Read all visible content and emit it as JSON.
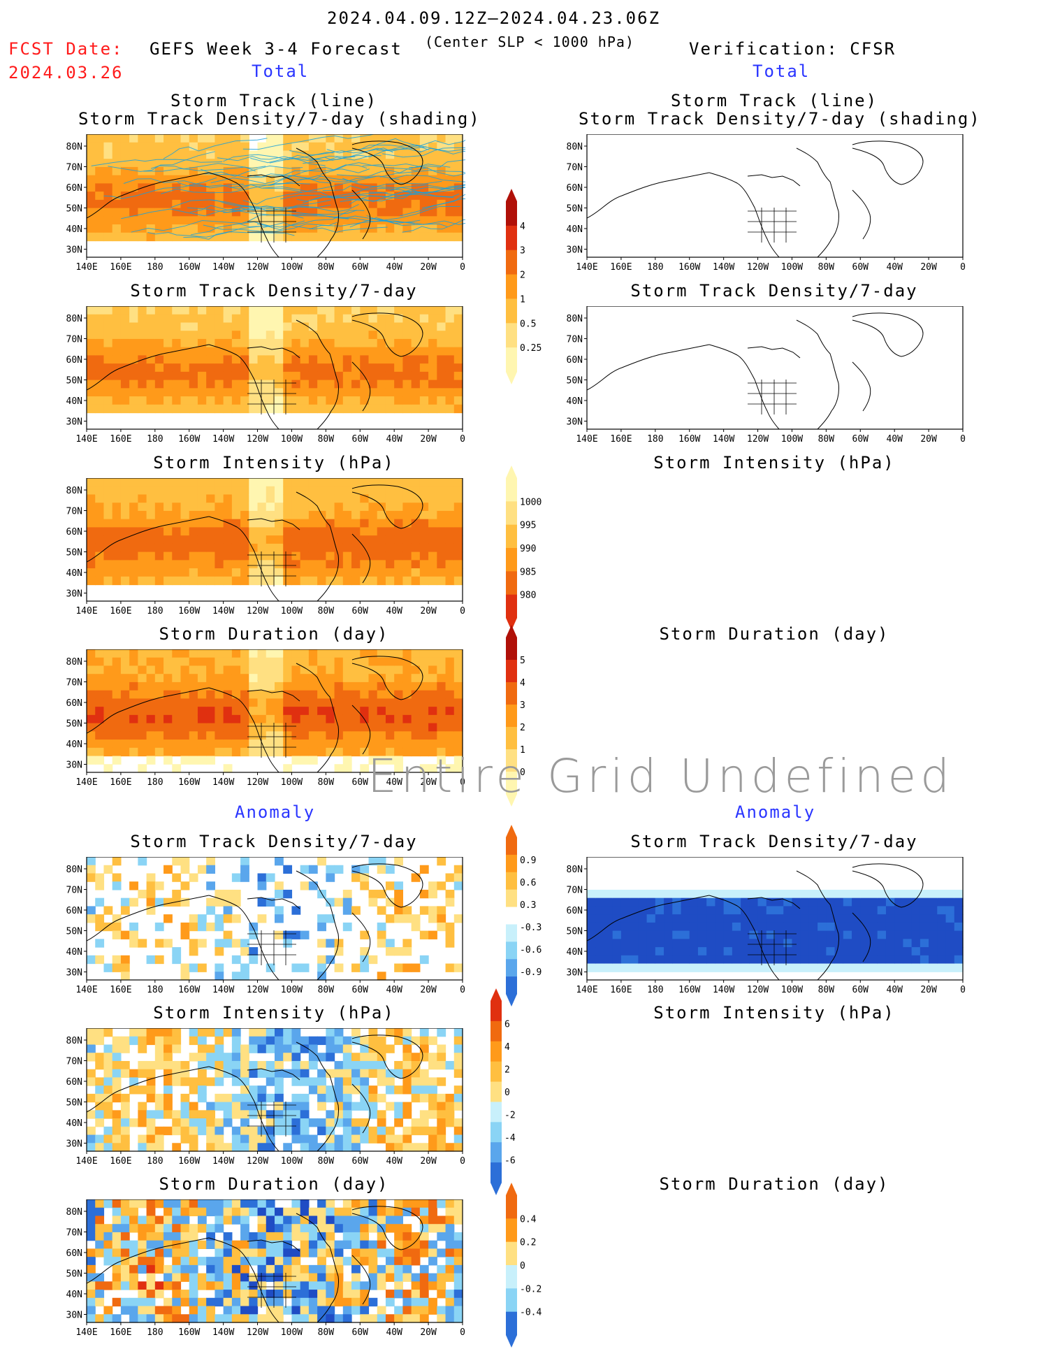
{
  "header": {
    "date_range": "2024.04.09.12Z–2024.04.23.06Z",
    "threshold": "(Center SLP < 1000 hPa)",
    "fcst_label": "FCST Date:",
    "fcst_date": "2024.03.26",
    "forecast_title": "GEFS Week 3-4 Forecast",
    "verification_title": "Verification: CFSR"
  },
  "sections": {
    "total_left": "Total",
    "total_right": "Total",
    "anomaly_left": "Anomaly",
    "anomaly_right": "Anomaly"
  },
  "panels": {
    "track_line": "Storm Track (line)",
    "track_shading": "Storm Track Density/7-day (shading)",
    "density": "Storm Track Density/7-day",
    "intensity": "Storm Intensity (hPa)",
    "duration": "Storm Duration (day)"
  },
  "axes": {
    "lat_labels": [
      "80N",
      "70N",
      "60N",
      "50N",
      "40N",
      "30N"
    ],
    "lon_labels": [
      "140E",
      "160E",
      "180",
      "160W",
      "140W",
      "120W",
      "100W",
      "80W",
      "60W",
      "40W",
      "20W",
      "0"
    ]
  },
  "colorbars": {
    "density_total": [
      "4",
      "3",
      "2",
      "1",
      "0.5",
      "0.25"
    ],
    "intensity_total": [
      "1000",
      "995",
      "990",
      "985",
      "980"
    ],
    "duration_total": [
      "5",
      "4",
      "3",
      "2",
      "1",
      "0"
    ],
    "density_anom": [
      "0.9",
      "0.6",
      "0.3",
      "-0.3",
      "-0.6",
      "-0.9"
    ],
    "intensity_anom": [
      "6",
      "4",
      "2",
      "0",
      "-2",
      "-4",
      "-6"
    ],
    "duration_anom": [
      "0.4",
      "0.2",
      "0",
      "-0.2",
      "-0.4"
    ]
  },
  "watermark": "Entire Grid Undefined",
  "colors": {
    "fcst_red": "#ff1a1a",
    "section_blue": "#2a35ff",
    "track_lines": "#1aa0d8",
    "warm_scale": [
      "#fff6b0",
      "#ffe082",
      "#ffbf40",
      "#ff9a1a",
      "#f06a10",
      "#e03010",
      "#b01008"
    ],
    "cool_scale": [
      "#c8f0fb",
      "#8ad4f5",
      "#5aa6ec",
      "#2c6fd8",
      "#1f4cc4"
    ]
  }
}
